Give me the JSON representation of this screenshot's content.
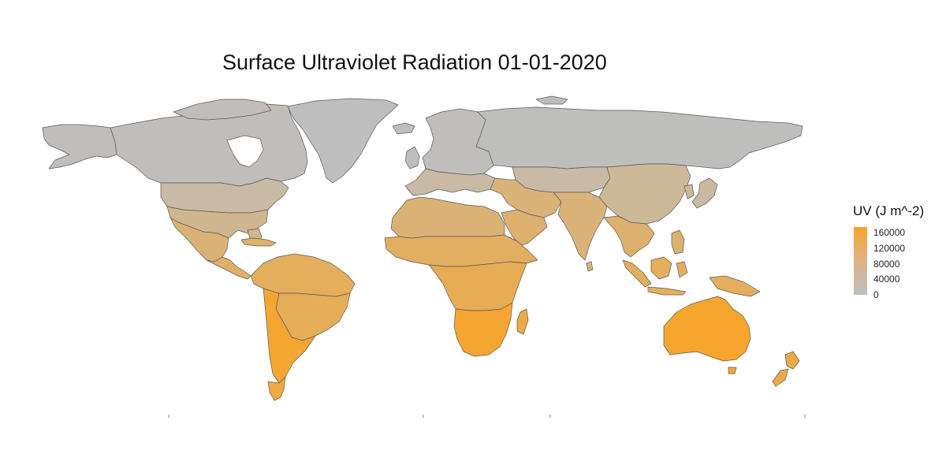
{
  "title": "Surface Ultraviolet Radiation 01-01-2020",
  "legend": {
    "title": "UV (J m^-2)",
    "ticks": [
      "160000",
      "120000",
      "80000",
      "40000",
      "0"
    ],
    "tick_values": [
      160000,
      120000,
      80000,
      40000,
      0
    ],
    "range": [
      0,
      175000
    ],
    "color_low": "#bebebe",
    "color_high": "#f8a529"
  },
  "colors": {
    "border": "#5a5a5a",
    "background": "#ffffff"
  },
  "regions": [
    {
      "name": "Greenland",
      "uv": 0
    },
    {
      "name": "Canada",
      "uv": 5000
    },
    {
      "name": "Alaska",
      "uv": 2000
    },
    {
      "name": "Northern USA",
      "uv": 30000
    },
    {
      "name": "Southern USA",
      "uv": 55000
    },
    {
      "name": "Mexico",
      "uv": 85000
    },
    {
      "name": "Central America",
      "uv": 100000
    },
    {
      "name": "Caribbean",
      "uv": 100000
    },
    {
      "name": "Northern South America",
      "uv": 115000
    },
    {
      "name": "Brazil",
      "uv": 120000
    },
    {
      "name": "Southern South America",
      "uv": 165000
    },
    {
      "name": "Patagonia",
      "uv": 150000
    },
    {
      "name": "Iceland",
      "uv": 0
    },
    {
      "name": "Northern Europe",
      "uv": 2000
    },
    {
      "name": "Southern Europe",
      "uv": 30000
    },
    {
      "name": "North Africa",
      "uv": 85000
    },
    {
      "name": "Sahel",
      "uv": 110000
    },
    {
      "name": "Central Africa",
      "uv": 125000
    },
    {
      "name": "Southern Africa",
      "uv": 165000
    },
    {
      "name": "Madagascar",
      "uv": 140000
    },
    {
      "name": "Middle East",
      "uv": 80000
    },
    {
      "name": "Arabian Peninsula",
      "uv": 95000
    },
    {
      "name": "Russia",
      "uv": 1000
    },
    {
      "name": "Central Asia",
      "uv": 30000
    },
    {
      "name": "India",
      "uv": 80000
    },
    {
      "name": "China",
      "uv": 45000
    },
    {
      "name": "Southeast Asia",
      "uv": 95000
    },
    {
      "name": "Japan",
      "uv": 35000
    },
    {
      "name": "Indonesia",
      "uv": 115000
    },
    {
      "name": "Australia",
      "uv": 170000
    },
    {
      "name": "New Zealand",
      "uv": 140000
    }
  ]
}
